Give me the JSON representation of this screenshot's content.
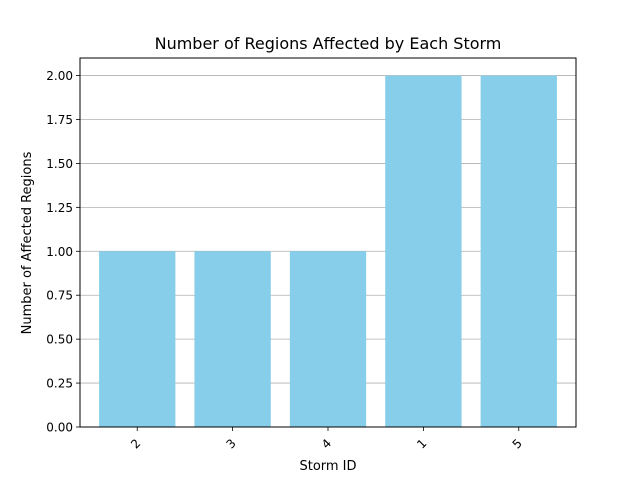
{
  "chart_data": {
    "type": "bar",
    "title": "Number of Regions Affected by Each Storm",
    "xlabel": "Storm ID",
    "ylabel": "Number of Affected Regions",
    "categories": [
      "2",
      "3",
      "4",
      "1",
      "5"
    ],
    "values": [
      1,
      1,
      1,
      2,
      2
    ],
    "ylim": [
      0,
      2.1
    ],
    "yticks": [
      "0.00",
      "0.25",
      "0.50",
      "0.75",
      "1.00",
      "1.25",
      "1.50",
      "1.75",
      "2.00"
    ],
    "grid": "horizontal",
    "xtick_rotation": 45,
    "bar_color": "#87ceeb",
    "grid_color": "#b0b0b0"
  }
}
